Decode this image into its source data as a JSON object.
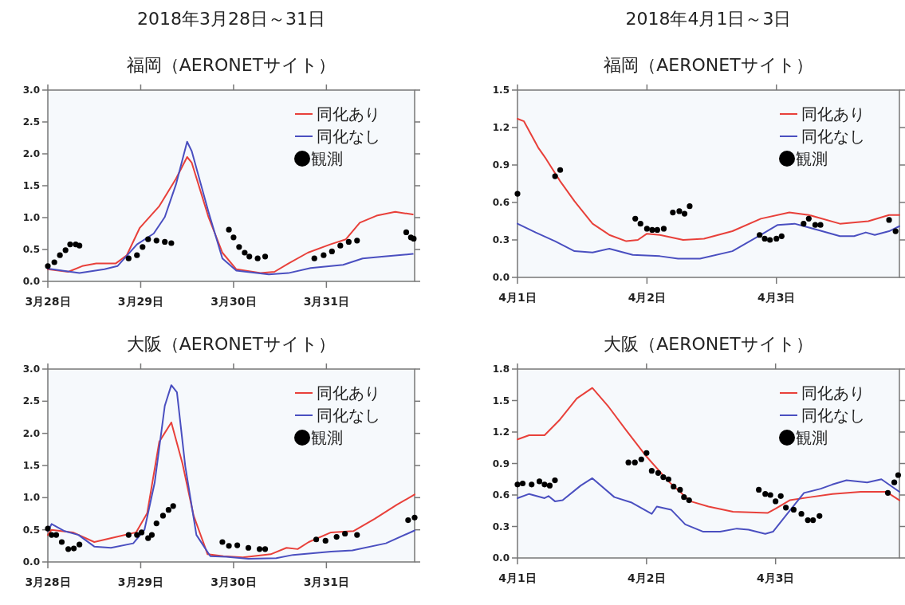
{
  "chart_data": [
    {
      "type": "line",
      "title": "2018年3月28日～31日",
      "subtitle": "福岡（AERONETサイト）",
      "legend": "top right",
      "xlim": [
        "2018-03-28T00:00",
        "2018-03-31T22:48"
      ],
      "ylim": [
        0,
        3.0
      ],
      "xticks": [
        {
          "value": "2018-03-28",
          "label": "3月28日"
        },
        {
          "value": "2018-03-29",
          "label": "3月29日"
        },
        {
          "value": "2018-03-30",
          "label": "3月30日"
        },
        {
          "value": "2018-03-31",
          "label": "3月31日"
        }
      ],
      "yticks": [
        {
          "value": 0,
          "label": "0.0"
        },
        {
          "value": 0.5,
          "label": "0.5"
        },
        {
          "value": 1,
          "label": "1.0"
        },
        {
          "value": 1.5,
          "label": "1.5"
        },
        {
          "value": 2,
          "label": "2.0"
        },
        {
          "value": 2.5,
          "label": "2.5"
        },
        {
          "value": 3,
          "label": "3.0"
        }
      ],
      "series": [
        {
          "name": "同化あり",
          "color": "#e8403a",
          "x": [
            "2018-03-28T00:00",
            "2018-03-28T05:17",
            "2018-03-28T08:53",
            "2018-03-28T12:29",
            "2018-03-28T17:31",
            "2018-03-28T20:24",
            "2018-03-28T23:46",
            "2018-03-29T04:48",
            "2018-03-29T09:07",
            "2018-03-29T12:00",
            "2018-03-29T13:12",
            "2018-03-29T17:31",
            "2018-03-29T21:07",
            "2018-03-30T00:43",
            "2018-03-30T06:58",
            "2018-03-30T10:34",
            "2018-03-30T14:10",
            "2018-03-30T19:12",
            "2018-03-31T00:58",
            "2018-03-31T05:02",
            "2018-03-31T08:38",
            "2018-03-31T12:58",
            "2018-03-31T17:46",
            "2018-03-31T22:19"
          ],
          "values": [
            0.19,
            0.15,
            0.24,
            0.28,
            0.28,
            0.41,
            0.84,
            1.18,
            1.61,
            1.95,
            1.86,
            1.01,
            0.45,
            0.19,
            0.13,
            0.15,
            0.28,
            0.45,
            0.58,
            0.66,
            0.92,
            1.03,
            1.09,
            1.05
          ]
        },
        {
          "name": "同化なし",
          "color": "#4a4fc0",
          "x": [
            "2018-03-28T00:00",
            "2018-03-28T08:10",
            "2018-03-28T14:38",
            "2018-03-28T18:00",
            "2018-03-28T23:02",
            "2018-03-29T03:22",
            "2018-03-29T06:14",
            "2018-03-29T09:07",
            "2018-03-29T12:00",
            "2018-03-29T13:12",
            "2018-03-29T17:31",
            "2018-03-29T21:07",
            "2018-03-30T00:43",
            "2018-03-30T09:07",
            "2018-03-30T14:10",
            "2018-03-30T19:55",
            "2018-03-31T04:19",
            "2018-03-31T09:22",
            "2018-03-31T14:53",
            "2018-03-31T22:19"
          ],
          "values": [
            0.2,
            0.13,
            0.19,
            0.24,
            0.58,
            0.75,
            1.01,
            1.52,
            2.19,
            2.04,
            1.09,
            0.36,
            0.17,
            0.11,
            0.13,
            0.21,
            0.26,
            0.36,
            0.39,
            0.43
          ]
        },
        {
          "name": "観測",
          "type": "scatter",
          "marker": "circle",
          "color": "#000000",
          "x": [
            "2018-03-28T00:00",
            "2018-03-28T01:41",
            "2018-03-28T03:07",
            "2018-03-28T04:34",
            "2018-03-28T05:46",
            "2018-03-28T07:12",
            "2018-03-28T08:10",
            "2018-03-28T20:53",
            "2018-03-28T23:02",
            "2018-03-29T00:29",
            "2018-03-29T01:55",
            "2018-03-29T04:05",
            "2018-03-29T06:14",
            "2018-03-29T07:55",
            "2018-03-29T22:48",
            "2018-03-30T00:00",
            "2018-03-30T01:26",
            "2018-03-30T02:53",
            "2018-03-30T04:05",
            "2018-03-30T06:14",
            "2018-03-30T08:10",
            "2018-03-30T20:53",
            "2018-03-30T23:17",
            "2018-03-31T01:26",
            "2018-03-31T03:36",
            "2018-03-31T05:46",
            "2018-03-31T07:55",
            "2018-03-31T20:38",
            "2018-03-31T21:50",
            "2018-03-31T22:34"
          ],
          "values": [
            0.24,
            0.3,
            0.41,
            0.49,
            0.58,
            0.58,
            0.56,
            0.36,
            0.41,
            0.54,
            0.66,
            0.64,
            0.62,
            0.6,
            0.81,
            0.69,
            0.54,
            0.45,
            0.39,
            0.36,
            0.39,
            0.36,
            0.41,
            0.47,
            0.56,
            0.62,
            0.64,
            0.77,
            0.69,
            0.67
          ]
        }
      ]
    },
    {
      "type": "line",
      "title": "2018年4月1日～3日",
      "subtitle": "福岡（AERONETサイト）",
      "legend": "top right",
      "xlim": [
        "2018-04-01T00:00",
        "2018-04-03T22:48"
      ],
      "ylim": [
        0,
        1.5
      ],
      "xticks": [
        {
          "value": "2018-04-01",
          "label": "4月1日"
        },
        {
          "value": "2018-04-02",
          "label": "4月2日"
        },
        {
          "value": "2018-04-03",
          "label": "4月3日"
        }
      ],
      "yticks": [
        {
          "value": 0,
          "label": "0.0"
        },
        {
          "value": 0.3,
          "label": "0.3"
        },
        {
          "value": 0.6,
          "label": "0.6"
        },
        {
          "value": 0.9,
          "label": "0.9"
        },
        {
          "value": 1.2,
          "label": "1.2"
        },
        {
          "value": 1.5,
          "label": "1.5"
        }
      ],
      "series": [
        {
          "name": "同化あり",
          "color": "#e8403a",
          "x": [
            "2018-04-01T00:00",
            "2018-04-01T01:12",
            "2018-04-01T03:50",
            "2018-04-01T05:17",
            "2018-04-01T07:55",
            "2018-04-01T10:34",
            "2018-04-01T13:55",
            "2018-04-01T17:02",
            "2018-04-01T20:10",
            "2018-04-01T22:19",
            "2018-04-02T00:00",
            "2018-04-02T02:24",
            "2018-04-02T06:43",
            "2018-04-02T10:34",
            "2018-04-02T15:50",
            "2018-04-02T21:07",
            "2018-04-03T02:24",
            "2018-04-03T06:00",
            "2018-04-03T11:46",
            "2018-04-03T17:02",
            "2018-04-03T20:53",
            "2018-04-03T22:48"
          ],
          "values": [
            1.27,
            1.25,
            1.04,
            0.95,
            0.77,
            0.61,
            0.43,
            0.34,
            0.29,
            0.3,
            0.35,
            0.34,
            0.3,
            0.31,
            0.37,
            0.47,
            0.52,
            0.5,
            0.43,
            0.45,
            0.5,
            0.5
          ]
        },
        {
          "name": "同化なし",
          "color": "#4a4fc0",
          "x": [
            "2018-04-01T00:00",
            "2018-04-01T03:22",
            "2018-04-01T06:58",
            "2018-04-01T10:34",
            "2018-04-01T13:55",
            "2018-04-01T17:02",
            "2018-04-01T21:22",
            "2018-04-02T02:24",
            "2018-04-02T05:46",
            "2018-04-02T09:50",
            "2018-04-02T15:50",
            "2018-04-02T21:07",
            "2018-04-03T00:14",
            "2018-04-03T03:22",
            "2018-04-03T07:41",
            "2018-04-03T11:46",
            "2018-04-03T14:24",
            "2018-04-03T16:34",
            "2018-04-03T18:14",
            "2018-04-03T20:53",
            "2018-04-03T22:48"
          ],
          "values": [
            0.43,
            0.36,
            0.29,
            0.21,
            0.2,
            0.23,
            0.18,
            0.17,
            0.15,
            0.15,
            0.21,
            0.34,
            0.42,
            0.43,
            0.38,
            0.33,
            0.33,
            0.36,
            0.34,
            0.37,
            0.41
          ]
        },
        {
          "name": "観測",
          "type": "scatter",
          "marker": "circle",
          "color": "#000000",
          "x": [
            "2018-04-01T00:00",
            "2018-04-01T06:58",
            "2018-04-01T07:55",
            "2018-04-01T21:50",
            "2018-04-01T22:48",
            "2018-04-02T00:00",
            "2018-04-02T00:58",
            "2018-04-02T01:55",
            "2018-04-02T03:07",
            "2018-04-02T04:48",
            "2018-04-02T06:00",
            "2018-04-02T06:58",
            "2018-04-02T07:55",
            "2018-04-02T20:53",
            "2018-04-02T21:50",
            "2018-04-02T22:48",
            "2018-04-03T00:00",
            "2018-04-03T00:58",
            "2018-04-03T05:02",
            "2018-04-03T06:00",
            "2018-04-03T07:12",
            "2018-04-03T08:10",
            "2018-04-03T20:53",
            "2018-04-03T22:05"
          ],
          "values": [
            0.67,
            0.81,
            0.86,
            0.47,
            0.43,
            0.39,
            0.38,
            0.38,
            0.39,
            0.52,
            0.53,
            0.51,
            0.57,
            0.34,
            0.31,
            0.3,
            0.31,
            0.33,
            0.43,
            0.47,
            0.42,
            0.42,
            0.46,
            0.37
          ]
        }
      ]
    },
    {
      "type": "line",
      "title": "大阪（AERONETサイト）",
      "legend": "top right",
      "xlim": [
        "2018-03-28T00:00",
        "2018-03-31T22:48"
      ],
      "ylim": [
        0,
        3.0
      ],
      "xticks": [
        {
          "value": "2018-03-28",
          "label": "3月28日"
        },
        {
          "value": "2018-03-29",
          "label": "3月29日"
        },
        {
          "value": "2018-03-30",
          "label": "3月30日"
        },
        {
          "value": "2018-03-31",
          "label": "3月31日"
        }
      ],
      "yticks": [
        {
          "value": 0,
          "label": "0.0"
        },
        {
          "value": 0.5,
          "label": "0.5"
        },
        {
          "value": 1,
          "label": "1.0"
        },
        {
          "value": 1.5,
          "label": "1.5"
        },
        {
          "value": 2,
          "label": "2.0"
        },
        {
          "value": 2.5,
          "label": "2.5"
        },
        {
          "value": 3,
          "label": "3.0"
        }
      ],
      "series": [
        {
          "name": "同化あり",
          "color": "#e8403a",
          "x": [
            "2018-03-28T00:00",
            "2018-03-28T00:58",
            "2018-03-28T06:29",
            "2018-03-28T12:00",
            "2018-03-28T17:46",
            "2018-03-28T22:48",
            "2018-03-29T01:41",
            "2018-03-29T04:48",
            "2018-03-29T07:55",
            "2018-03-29T10:48",
            "2018-03-29T13:41",
            "2018-03-29T17:17",
            "2018-03-29T21:22",
            "2018-03-30T02:24",
            "2018-03-30T09:36",
            "2018-03-30T13:41",
            "2018-03-30T16:34",
            "2018-03-30T19:26",
            "2018-03-31T01:12",
            "2018-03-31T06:58",
            "2018-03-31T12:29",
            "2018-03-31T18:14",
            "2018-03-31T22:48"
          ],
          "values": [
            0.42,
            0.5,
            0.46,
            0.31,
            0.39,
            0.46,
            0.76,
            1.87,
            2.17,
            1.53,
            0.72,
            0.12,
            0.09,
            0.07,
            0.12,
            0.22,
            0.2,
            0.31,
            0.46,
            0.48,
            0.67,
            0.89,
            1.05
          ]
        },
        {
          "name": "同化なし",
          "color": "#4a4fc0",
          "x": [
            "2018-03-28T00:00",
            "2018-03-28T00:58",
            "2018-03-28T04:19",
            "2018-03-28T07:55",
            "2018-03-28T12:00",
            "2018-03-28T16:19",
            "2018-03-28T22:05",
            "2018-03-29T00:58",
            "2018-03-29T03:36",
            "2018-03-29T06:14",
            "2018-03-29T07:55",
            "2018-03-29T09:22",
            "2018-03-29T11:31",
            "2018-03-29T14:24",
            "2018-03-29T18:00",
            "2018-03-29T22:05",
            "2018-03-30T03:50",
            "2018-03-30T11:02",
            "2018-03-30T15:22",
            "2018-03-31T01:12",
            "2018-03-31T06:43",
            "2018-03-31T15:22",
            "2018-03-31T22:48"
          ],
          "values": [
            0.48,
            0.59,
            0.48,
            0.42,
            0.24,
            0.22,
            0.29,
            0.5,
            1.23,
            2.43,
            2.75,
            2.64,
            1.49,
            0.42,
            0.09,
            0.08,
            0.05,
            0.06,
            0.11,
            0.16,
            0.18,
            0.29,
            0.49
          ]
        },
        {
          "name": "観測",
          "type": "scatter",
          "marker": "circle",
          "color": "#000000",
          "x": [
            "2018-03-28T00:00",
            "2018-03-28T00:58",
            "2018-03-28T02:10",
            "2018-03-28T03:36",
            "2018-03-28T05:17",
            "2018-03-28T06:43",
            "2018-03-28T08:10",
            "2018-03-28T20:53",
            "2018-03-28T23:02",
            "2018-03-29T00:14",
            "2018-03-29T01:55",
            "2018-03-29T02:53",
            "2018-03-29T04:05",
            "2018-03-29T05:46",
            "2018-03-29T07:12",
            "2018-03-29T08:24",
            "2018-03-29T21:07",
            "2018-03-29T22:48",
            "2018-03-30T00:58",
            "2018-03-30T03:50",
            "2018-03-30T06:43",
            "2018-03-30T08:10",
            "2018-03-30T21:22",
            "2018-03-30T23:46",
            "2018-03-31T02:38",
            "2018-03-31T04:48",
            "2018-03-31T07:55",
            "2018-03-31T21:07",
            "2018-03-31T22:48"
          ],
          "values": [
            0.52,
            0.42,
            0.42,
            0.31,
            0.2,
            0.21,
            0.27,
            0.42,
            0.42,
            0.46,
            0.37,
            0.42,
            0.6,
            0.72,
            0.81,
            0.87,
            0.31,
            0.25,
            0.26,
            0.22,
            0.2,
            0.2,
            0.35,
            0.33,
            0.39,
            0.44,
            0.42,
            0.65,
            0.69
          ]
        }
      ]
    },
    {
      "type": "line",
      "title": "大阪（AERONETサイト）",
      "legend": "top right",
      "xlim": [
        "2018-04-01T00:00",
        "2018-04-03T23:02"
      ],
      "ylim": [
        0,
        1.8
      ],
      "xticks": [
        {
          "value": "2018-04-01",
          "label": "4月1日"
        },
        {
          "value": "2018-04-02",
          "label": "4月2日"
        },
        {
          "value": "2018-04-03",
          "label": "4月3日"
        }
      ],
      "yticks": [
        {
          "value": 0,
          "label": "0.0"
        },
        {
          "value": 0.3,
          "label": "0.3"
        },
        {
          "value": 0.6,
          "label": "0.6"
        },
        {
          "value": 0.9,
          "label": "0.9"
        },
        {
          "value": 1.2,
          "label": "1.2"
        },
        {
          "value": 1.5,
          "label": "1.5"
        },
        {
          "value": 1.8,
          "label": "1.8"
        }
      ],
      "series": [
        {
          "name": "同化あり",
          "color": "#e8403a",
          "x": [
            "2018-04-01T00:00",
            "2018-04-01T02:10",
            "2018-04-01T05:02",
            "2018-04-01T07:55",
            "2018-04-01T11:02",
            "2018-04-01T13:55",
            "2018-04-01T16:48",
            "2018-04-01T20:10",
            "2018-04-01T23:46",
            "2018-04-02T04:05",
            "2018-04-02T08:10",
            "2018-04-02T11:31",
            "2018-04-02T16:05",
            "2018-04-02T22:34",
            "2018-04-03T00:00",
            "2018-04-03T02:38",
            "2018-04-03T06:29",
            "2018-04-03T10:34",
            "2018-04-03T15:50",
            "2018-04-03T20:38",
            "2018-04-03T23:02"
          ],
          "values": [
            1.13,
            1.17,
            1.17,
            1.32,
            1.52,
            1.62,
            1.45,
            1.22,
            0.98,
            0.73,
            0.54,
            0.49,
            0.44,
            0.43,
            0.47,
            0.55,
            0.58,
            0.61,
            0.63,
            0.63,
            0.55
          ]
        },
        {
          "name": "同化なし",
          "color": "#4a4fc0",
          "x": [
            "2018-04-01T00:00",
            "2018-04-01T02:10",
            "2018-04-01T05:02",
            "2018-04-01T05:46",
            "2018-04-01T06:58",
            "2018-04-01T08:24",
            "2018-04-01T11:46",
            "2018-04-01T13:55",
            "2018-04-01T18:00",
            "2018-04-01T21:07",
            "2018-04-02T00:58",
            "2018-04-02T01:55",
            "2018-04-02T04:34",
            "2018-04-02T07:12",
            "2018-04-02T10:34",
            "2018-04-02T13:41",
            "2018-04-02T16:48",
            "2018-04-02T18:58",
            "2018-04-02T22:05",
            "2018-04-02T23:31",
            "2018-04-03T02:10",
            "2018-04-03T05:17",
            "2018-04-03T08:24",
            "2018-04-03T10:34",
            "2018-04-03T13:12",
            "2018-04-03T17:02",
            "2018-04-03T19:41",
            "2018-04-03T23:02"
          ],
          "values": [
            0.57,
            0.61,
            0.57,
            0.59,
            0.54,
            0.55,
            0.69,
            0.76,
            0.58,
            0.53,
            0.42,
            0.49,
            0.46,
            0.32,
            0.25,
            0.25,
            0.28,
            0.27,
            0.23,
            0.25,
            0.42,
            0.62,
            0.66,
            0.7,
            0.74,
            0.72,
            0.75,
            0.63
          ]
        },
        {
          "name": "観測",
          "type": "scatter",
          "marker": "circle",
          "color": "#000000",
          "x": [
            "2018-04-01T00:00",
            "2018-04-01T00:58",
            "2018-04-01T02:38",
            "2018-04-01T04:05",
            "2018-04-01T05:02",
            "2018-04-01T06:00",
            "2018-04-01T06:58",
            "2018-04-01T20:38",
            "2018-04-01T21:50",
            "2018-04-01T23:02",
            "2018-04-02T00:00",
            "2018-04-02T00:58",
            "2018-04-02T02:10",
            "2018-04-02T03:07",
            "2018-04-02T04:05",
            "2018-04-02T05:02",
            "2018-04-02T06:14",
            "2018-04-02T06:58",
            "2018-04-02T07:55",
            "2018-04-02T20:53",
            "2018-04-02T22:05",
            "2018-04-02T23:02",
            "2018-04-03T00:00",
            "2018-04-03T00:58",
            "2018-04-03T01:55",
            "2018-04-03T03:22",
            "2018-04-03T04:48",
            "2018-04-03T06:00",
            "2018-04-03T06:58",
            "2018-04-03T08:10",
            "2018-04-03T20:53",
            "2018-04-03T22:05",
            "2018-04-03T22:48"
          ],
          "values": [
            0.7,
            0.71,
            0.7,
            0.73,
            0.7,
            0.69,
            0.74,
            0.91,
            0.91,
            0.94,
            1.0,
            0.83,
            0.81,
            0.77,
            0.75,
            0.68,
            0.65,
            0.58,
            0.55,
            0.65,
            0.61,
            0.6,
            0.54,
            0.59,
            0.48,
            0.46,
            0.42,
            0.36,
            0.36,
            0.4,
            0.62,
            0.72,
            0.79
          ]
        }
      ]
    }
  ]
}
